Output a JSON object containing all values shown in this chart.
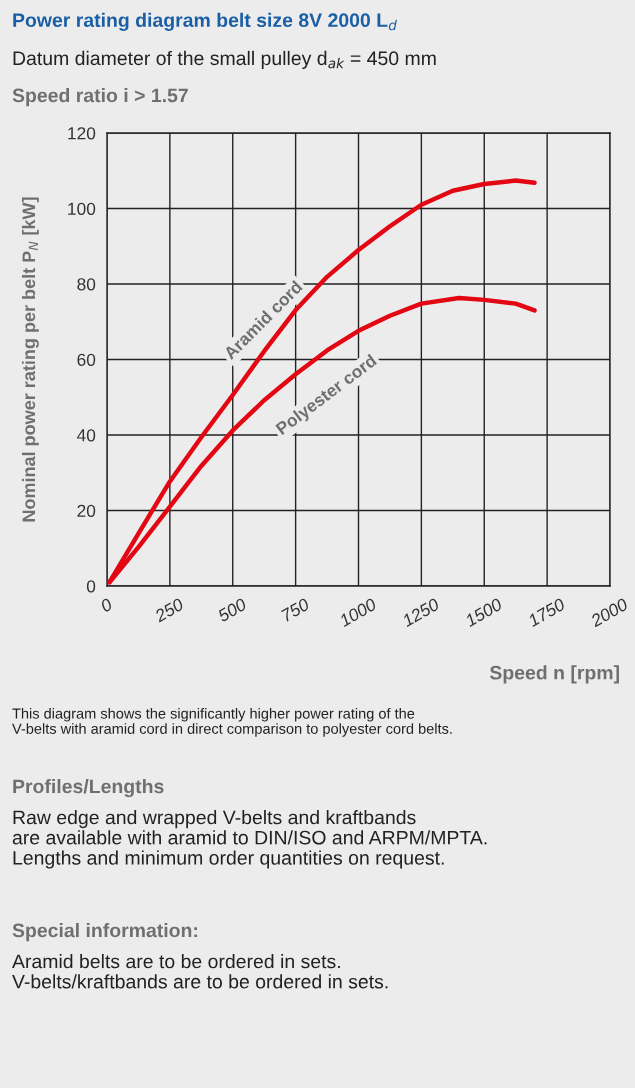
{
  "chart_data": {
    "type": "line",
    "title": "Power rating diagram belt size 8V 2000 L$_{d}$",
    "subtitle": "Datum diameter of the small pulley d$_{ak}$ = 450 mm",
    "xlabel": "Speed n [rpm]",
    "ylabel": "Nominal power rating per belt P$_{N}$ [kW]",
    "xlim": [
      0,
      2000
    ],
    "xticks": [
      0,
      250,
      500,
      750,
      1000,
      1250,
      1500,
      1750,
      2000
    ],
    "ylim": [
      0,
      120
    ],
    "yticks": [
      0,
      20,
      40,
      60,
      80,
      100,
      120
    ],
    "grid": true,
    "legend": false,
    "marker": "none",
    "line_style": "solid",
    "series": [
      {
        "name": "Aramid cord",
        "color": "#e30613",
        "x": [
          10,
          125,
          250,
          375,
          500,
          625,
          750,
          875,
          1000,
          1125,
          1250,
          1375,
          1500,
          1625,
          1700
        ],
        "values": [
          1,
          13.9,
          27.7,
          39.4,
          50.6,
          62.2,
          73.1,
          81.9,
          89,
          95.3,
          101,
          104.7,
          106.5,
          107.4,
          106.8
        ]
      },
      {
        "name": "Polyester cord",
        "color": "#e30613",
        "x": [
          10,
          125,
          250,
          375,
          500,
          625,
          750,
          875,
          1000,
          1125,
          1250,
          1400,
          1500,
          1625,
          1700
        ],
        "values": [
          1,
          10.3,
          21,
          31.8,
          41.2,
          49.2,
          56.1,
          62.4,
          67.6,
          71.6,
          74.8,
          76.3,
          75.8,
          74.8,
          73
        ]
      }
    ],
    "annotations": [
      "Speed ratio i > 1.57",
      "This diagram shows the significantly higher power rating of the\nV-belts with aramid cord in direct comparison to polyester cord belts.",
      "Profiles/Lengths",
      "Raw edge and wrapped V-belts and kraftbands\nare available with aramid to DIN/ISO and ARPM/MPTA.\nLengths and minimum order quantities on request.",
      "Special information:",
      "Aramid belts are to be ordered in sets.\nV-belts/kraftbands are to be ordered in sets."
    ]
  }
}
